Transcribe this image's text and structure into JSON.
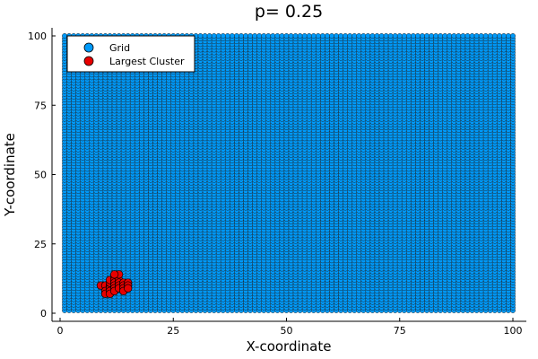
{
  "chart_data": {
    "type": "scatter",
    "title": "p= 0.25",
    "xlabel": "X-coordinate",
    "ylabel": "Y-coordinate",
    "xlim": [
      0,
      100
    ],
    "ylim": [
      0,
      100
    ],
    "x_ticks": [
      "0",
      "25",
      "50",
      "75",
      "100"
    ],
    "y_ticks": [
      "0",
      "25",
      "50",
      "75",
      "100"
    ],
    "grid": false,
    "legend_position": "top-left",
    "series": [
      {
        "name": "Grid",
        "color": "#009AFA",
        "grid_points": {
          "x_from": 1,
          "x_to": 100,
          "y_from": 1,
          "y_to": 100,
          "step": 1
        }
      },
      {
        "name": "Largest Cluster",
        "color": "#E80000",
        "points": [
          [
            9,
            10
          ],
          [
            10,
            10
          ],
          [
            10,
            8
          ],
          [
            10,
            7
          ],
          [
            11,
            10
          ],
          [
            11,
            9
          ],
          [
            11,
            8
          ],
          [
            11,
            7
          ],
          [
            11,
            11
          ],
          [
            11,
            12
          ],
          [
            12,
            13
          ],
          [
            12,
            12
          ],
          [
            12,
            11
          ],
          [
            12,
            10
          ],
          [
            12,
            9
          ],
          [
            12,
            8
          ],
          [
            13,
            12
          ],
          [
            13,
            11
          ],
          [
            13,
            10
          ],
          [
            13,
            9
          ],
          [
            13,
            14
          ],
          [
            12,
            14
          ],
          [
            14,
            11
          ],
          [
            14,
            10
          ],
          [
            14,
            9
          ],
          [
            14,
            8
          ],
          [
            15,
            11
          ],
          [
            15,
            10
          ],
          [
            15,
            9
          ]
        ]
      }
    ]
  }
}
